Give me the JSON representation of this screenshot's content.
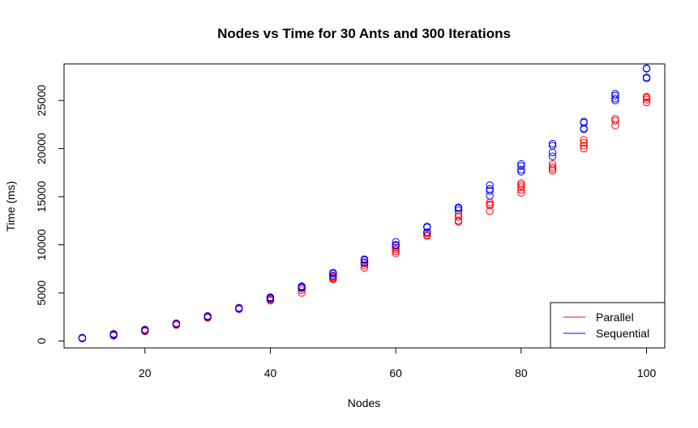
{
  "chart_data": {
    "type": "scatter",
    "title": "Nodes vs Time for 30 Ants and 300 Iterations",
    "xlabel": "Nodes",
    "ylabel": "Time (ms)",
    "xlim": [
      7.1,
      102.9
    ],
    "ylim": [
      -720,
      28800
    ],
    "xticks": [
      20,
      40,
      60,
      80,
      100
    ],
    "xtick_labels": [
      "20",
      "40",
      "60",
      "80",
      "100"
    ],
    "yticks": [
      0,
      5000,
      10000,
      15000,
      20000,
      25000
    ],
    "ytick_labels": [
      "0",
      "5000",
      "10000",
      "15000",
      "20000",
      "25000"
    ],
    "grid": false,
    "legend": {
      "position": "bottom-right",
      "entries": [
        "Parallel",
        "Sequential"
      ]
    },
    "series": [
      {
        "name": "Parallel",
        "color": "#ff0000",
        "x": [
          10,
          10,
          10,
          15,
          15,
          15,
          20,
          20,
          20,
          25,
          25,
          25,
          30,
          30,
          30,
          35,
          35,
          35,
          40,
          40,
          40,
          45,
          45,
          45,
          45,
          50,
          50,
          50,
          50,
          55,
          55,
          55,
          55,
          60,
          60,
          60,
          60,
          65,
          65,
          65,
          65,
          70,
          70,
          70,
          70,
          75,
          75,
          75,
          75,
          80,
          80,
          80,
          80,
          80,
          85,
          85,
          85,
          85,
          90,
          90,
          90,
          90,
          95,
          95,
          95,
          100,
          100,
          100,
          100
        ],
        "y": [
          250,
          300,
          350,
          550,
          650,
          750,
          1000,
          1100,
          1200,
          1650,
          1750,
          1850,
          2400,
          2500,
          2550,
          3300,
          3400,
          3450,
          4200,
          4300,
          4400,
          5000,
          5300,
          5500,
          5600,
          6400,
          6500,
          6600,
          6700,
          7600,
          7900,
          8100,
          8200,
          9100,
          9300,
          9500,
          9700,
          10900,
          11000,
          11200,
          11300,
          12400,
          12500,
          12900,
          13200,
          13500,
          14100,
          14200,
          14400,
          15400,
          15700,
          16000,
          16200,
          16400,
          17700,
          17900,
          18100,
          18400,
          20000,
          20300,
          20600,
          20900,
          22400,
          22900,
          23100,
          24800,
          25100,
          25300,
          25400
        ]
      },
      {
        "name": "Sequential",
        "color": "#0000ff",
        "x": [
          10,
          10,
          15,
          15,
          15,
          20,
          20,
          25,
          25,
          30,
          30,
          35,
          35,
          40,
          40,
          40,
          45,
          45,
          45,
          50,
          50,
          50,
          55,
          55,
          55,
          60,
          60,
          60,
          65,
          65,
          65,
          70,
          70,
          70,
          75,
          75,
          75,
          75,
          80,
          80,
          80,
          80,
          85,
          85,
          85,
          85,
          90,
          90,
          90,
          90,
          95,
          95,
          95,
          95,
          100,
          100,
          100,
          100
        ],
        "y": [
          280,
          330,
          600,
          700,
          720,
          1080,
          1150,
          1750,
          1800,
          2500,
          2600,
          3350,
          3450,
          4400,
          4500,
          4550,
          5500,
          5600,
          5700,
          6800,
          7000,
          7100,
          8100,
          8400,
          8500,
          9900,
          10000,
          10300,
          11300,
          11800,
          11900,
          13600,
          13800,
          13900,
          15100,
          15600,
          15800,
          16200,
          17600,
          17800,
          18200,
          18400,
          19200,
          19600,
          20300,
          20500,
          22000,
          22100,
          22700,
          22800,
          25000,
          25200,
          25500,
          25700,
          27300,
          27400,
          28300,
          28350
        ]
      }
    ]
  }
}
